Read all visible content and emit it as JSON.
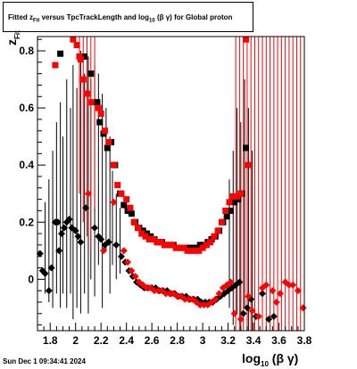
{
  "title": {
    "prefix": "Fitted ",
    "z": "z",
    "z_sub": "Fit",
    "mid": "  versus TpcTrackLength and log",
    "log_sub": "10",
    "suffix": " (β  γ) for Global proton"
  },
  "axis_titles": {
    "y_main": "z",
    "y_sub": "Fit",
    "x_main": "log",
    "x_sub": "10",
    "x_tail": " (β γ)"
  },
  "timestamp": "Sun Dec  1 09:34:41 2024",
  "chart_data": {
    "type": "scatter",
    "x_range": [
      1.7,
      3.8
    ],
    "y_range": [
      -0.18,
      0.85
    ],
    "x_ticks": [
      "1.8",
      "2",
      "2.2",
      "2.4",
      "2.6",
      "2.8",
      "3",
      "3.2",
      "3.4",
      "3.6",
      "3.8"
    ],
    "y_ticks": [
      "0",
      "0.2",
      "0.4",
      "0.6",
      "0.8"
    ],
    "series": [
      {
        "marker": "square",
        "color": "#000000",
        "points": [
          [
            1.88,
            0.79
          ],
          [
            2.07,
            0.78
          ],
          [
            2.12,
            0.72
          ],
          [
            2.17,
            0.62
          ],
          [
            2.19,
            0.55
          ],
          [
            2.22,
            0.51
          ],
          [
            2.25,
            0.46
          ],
          [
            2.28,
            0.48
          ],
          [
            2.31,
            0.4
          ],
          [
            2.35,
            0.3
          ],
          [
            2.38,
            0.26
          ],
          [
            2.41,
            0.24
          ],
          [
            2.44,
            0.23
          ],
          [
            2.47,
            0.2
          ],
          [
            2.5,
            0.18
          ],
          [
            2.53,
            0.17
          ],
          [
            2.56,
            0.16
          ],
          [
            2.59,
            0.15
          ],
          [
            2.62,
            0.14
          ],
          [
            2.65,
            0.13
          ],
          [
            2.68,
            0.13
          ],
          [
            2.71,
            0.12
          ],
          [
            2.74,
            0.12
          ],
          [
            2.77,
            0.12
          ],
          [
            2.8,
            0.11
          ],
          [
            2.83,
            0.11
          ],
          [
            2.86,
            0.11
          ],
          [
            2.89,
            0.11
          ],
          [
            2.92,
            0.11
          ],
          [
            2.95,
            0.11
          ],
          [
            2.98,
            0.12
          ],
          [
            3.01,
            0.12
          ],
          [
            3.04,
            0.13
          ],
          [
            3.07,
            0.14
          ],
          [
            3.1,
            0.15
          ],
          [
            3.13,
            0.17
          ],
          [
            3.16,
            0.2
          ],
          [
            3.19,
            0.22
          ],
          [
            3.22,
            0.24
          ],
          [
            3.25,
            0.27
          ],
          [
            3.28,
            0.28
          ],
          [
            3.31,
            0.3
          ],
          [
            3.34,
            0.46
          ]
        ]
      },
      {
        "marker": "square",
        "color": "#ff0000",
        "points": [
          [
            1.84,
            0.75
          ],
          [
            1.98,
            0.84
          ],
          [
            2.01,
            0.82
          ],
          [
            2.03,
            0.78
          ],
          [
            2.04,
            0.77
          ],
          [
            2.06,
            0.7
          ],
          [
            2.09,
            0.65
          ],
          [
            2.12,
            0.62
          ],
          [
            2.18,
            0.6
          ],
          [
            2.2,
            0.58
          ],
          [
            2.23,
            0.52
          ],
          [
            2.26,
            0.48
          ],
          [
            2.3,
            0.4
          ],
          [
            2.33,
            0.33
          ],
          [
            2.36,
            0.3
          ],
          [
            2.4,
            0.28
          ],
          [
            2.43,
            0.25
          ],
          [
            2.46,
            0.2
          ],
          [
            2.49,
            0.18
          ],
          [
            2.52,
            0.16
          ],
          [
            2.55,
            0.15
          ],
          [
            2.58,
            0.14
          ],
          [
            2.61,
            0.14
          ],
          [
            2.64,
            0.13
          ],
          [
            2.67,
            0.13
          ],
          [
            2.7,
            0.12
          ],
          [
            2.73,
            0.12
          ],
          [
            2.76,
            0.12
          ],
          [
            2.79,
            0.11
          ],
          [
            2.82,
            0.11
          ],
          [
            2.85,
            0.11
          ],
          [
            2.88,
            0.1
          ],
          [
            2.91,
            0.1
          ],
          [
            2.94,
            0.1
          ],
          [
            2.97,
            0.1
          ],
          [
            3.0,
            0.11
          ],
          [
            3.03,
            0.12
          ],
          [
            3.06,
            0.13
          ],
          [
            3.09,
            0.15
          ],
          [
            3.12,
            0.17
          ],
          [
            3.15,
            0.2
          ],
          [
            3.18,
            0.24
          ],
          [
            3.21,
            0.27
          ],
          [
            3.24,
            0.29
          ],
          [
            3.27,
            0.29
          ],
          [
            3.3,
            0.3
          ],
          [
            3.34,
            0.84
          ],
          [
            3.36,
            0.4
          ]
        ]
      },
      {
        "marker": "diamond",
        "color": "#000000",
        "points": [
          [
            1.72,
            0.09
          ],
          [
            1.74,
            0.03
          ],
          [
            1.76,
            0.02
          ],
          [
            1.79,
            -0.04
          ],
          [
            1.81,
            0.04
          ],
          [
            1.84,
            0.2
          ],
          [
            1.86,
            0.2
          ],
          [
            1.87,
            0.1
          ],
          [
            1.89,
            0.16
          ],
          [
            1.91,
            0.18
          ],
          [
            1.93,
            0.2
          ],
          [
            1.95,
            0.21
          ],
          [
            1.97,
            0.18
          ],
          [
            2.0,
            0.17
          ],
          [
            2.02,
            0.15
          ],
          [
            2.04,
            0.13
          ],
          [
            2.08,
            0.25
          ],
          [
            2.15,
            0.18
          ],
          [
            2.18,
            0.15
          ],
          [
            2.2,
            0.14
          ],
          [
            2.23,
            0.12
          ],
          [
            2.26,
            0.13
          ],
          [
            2.32,
            0.12
          ],
          [
            2.36,
            0.08
          ],
          [
            2.39,
            0.06
          ],
          [
            2.42,
            0.03
          ],
          [
            2.45,
            0.01
          ],
          [
            2.48,
            -0.01
          ],
          [
            2.51,
            -0.02
          ],
          [
            2.54,
            -0.03
          ],
          [
            2.57,
            -0.03
          ],
          [
            2.6,
            -0.03
          ],
          [
            2.63,
            -0.03
          ],
          [
            2.66,
            -0.04
          ],
          [
            2.69,
            -0.04
          ],
          [
            2.72,
            -0.04
          ],
          [
            2.75,
            -0.05
          ],
          [
            2.78,
            -0.05
          ],
          [
            2.81,
            -0.06
          ],
          [
            2.84,
            -0.06
          ],
          [
            2.87,
            -0.06
          ],
          [
            2.9,
            -0.07
          ],
          [
            2.93,
            -0.07
          ],
          [
            2.96,
            -0.07
          ],
          [
            2.99,
            -0.08
          ],
          [
            3.02,
            -0.08
          ],
          [
            3.05,
            -0.08
          ],
          [
            3.08,
            -0.08
          ],
          [
            3.11,
            -0.07
          ],
          [
            3.14,
            -0.06
          ],
          [
            3.17,
            -0.05
          ],
          [
            3.2,
            -0.04
          ],
          [
            3.23,
            -0.03
          ],
          [
            3.26,
            -0.02
          ],
          [
            3.29,
            -0.01
          ],
          [
            3.32,
            -0.12
          ],
          [
            3.35,
            -0.1
          ],
          [
            3.38,
            -0.07
          ],
          [
            3.42,
            -0.13
          ],
          [
            3.47,
            -0.05
          ],
          [
            3.52,
            -0.14
          ],
          [
            3.56,
            -0.13
          ]
        ]
      },
      {
        "marker": "diamond",
        "color": "#ff0000",
        "points": [
          [
            2.1,
            0.3
          ],
          [
            2.22,
            0.1
          ],
          [
            2.3,
            0.27
          ],
          [
            2.38,
            0.1
          ],
          [
            2.41,
            0.06
          ],
          [
            2.44,
            0.03
          ],
          [
            2.47,
            0.01
          ],
          [
            2.5,
            -0.01
          ],
          [
            2.53,
            -0.02
          ],
          [
            2.56,
            -0.03
          ],
          [
            2.59,
            -0.03
          ],
          [
            2.62,
            -0.04
          ],
          [
            2.65,
            -0.04
          ],
          [
            2.68,
            -0.04
          ],
          [
            2.71,
            -0.05
          ],
          [
            2.74,
            -0.05
          ],
          [
            2.77,
            -0.05
          ],
          [
            2.8,
            -0.06
          ],
          [
            2.83,
            -0.06
          ],
          [
            2.86,
            -0.07
          ],
          [
            2.89,
            -0.07
          ],
          [
            2.92,
            -0.07
          ],
          [
            2.95,
            -0.08
          ],
          [
            2.98,
            -0.09
          ],
          [
            3.01,
            -0.09
          ],
          [
            3.04,
            -0.09
          ],
          [
            3.07,
            -0.08
          ],
          [
            3.1,
            -0.07
          ],
          [
            3.13,
            -0.05
          ],
          [
            3.16,
            -0.03
          ],
          [
            3.19,
            -0.02
          ],
          [
            3.22,
            -0.01
          ],
          [
            3.25,
            -0.12
          ],
          [
            3.3,
            -0.14
          ],
          [
            3.36,
            -0.06
          ],
          [
            3.39,
            -0.11
          ],
          [
            3.44,
            -0.13
          ],
          [
            3.47,
            -0.03
          ],
          [
            3.5,
            -0.02
          ],
          [
            3.55,
            -0.04
          ],
          [
            3.58,
            -0.08
          ],
          [
            3.61,
            -0.05
          ],
          [
            3.65,
            -0.01
          ],
          [
            3.68,
            -0.02
          ],
          [
            3.71,
            -0.02
          ],
          [
            3.75,
            -0.04
          ],
          [
            3.79,
            -0.1
          ]
        ]
      }
    ],
    "error_bars": [
      {
        "color": "#000000",
        "x": 1.76,
        "lo": -0.05,
        "hi": 0.27
      },
      {
        "color": "#000000",
        "x": 1.79,
        "lo": -0.08,
        "hi": 0.35
      },
      {
        "color": "#000000",
        "x": 1.82,
        "lo": -0.1,
        "hi": 0.45
      },
      {
        "color": "#000000",
        "x": 1.85,
        "lo": -0.05,
        "hi": 0.55
      },
      {
        "color": "#000000",
        "x": 1.88,
        "lo": -0.1,
        "hi": 0.62
      },
      {
        "color": "#000000",
        "x": 1.9,
        "lo": -0.05,
        "hi": 0.5
      },
      {
        "color": "#000000",
        "x": 1.93,
        "lo": -0.1,
        "hi": 0.7
      },
      {
        "color": "#000000",
        "x": 1.96,
        "lo": -0.05,
        "hi": 0.6
      },
      {
        "color": "#000000",
        "x": 1.98,
        "lo": -0.14,
        "hi": 0.75
      },
      {
        "color": "#000000",
        "x": 2.01,
        "lo": -0.1,
        "hi": 0.67
      },
      {
        "color": "#000000",
        "x": 2.04,
        "lo": -0.12,
        "hi": 0.8
      },
      {
        "color": "#000000",
        "x": 2.07,
        "lo": -0.05,
        "hi": 0.72
      },
      {
        "color": "#000000",
        "x": 2.1,
        "lo": -0.12,
        "hi": 0.78
      },
      {
        "color": "#000000",
        "x": 2.12,
        "lo": 0.0,
        "hi": 0.7
      },
      {
        "color": "#000000",
        "x": 2.15,
        "lo": -0.06,
        "hi": 0.75
      },
      {
        "color": "#000000",
        "x": 2.18,
        "lo": 0.05,
        "hi": 0.72
      },
      {
        "color": "#000000",
        "x": 2.21,
        "lo": -0.1,
        "hi": 0.65
      },
      {
        "color": "#000000",
        "x": 2.24,
        "lo": 0.1,
        "hi": 0.6
      },
      {
        "color": "#000000",
        "x": 2.27,
        "lo": -0.05,
        "hi": 0.5
      },
      {
        "color": "#000000",
        "x": 2.29,
        "lo": 0.05,
        "hi": 0.38
      },
      {
        "color": "#000000",
        "x": 2.32,
        "lo": 0.0,
        "hi": 0.3
      },
      {
        "color": "#000000",
        "x": 2.35,
        "lo": 0.02,
        "hi": 0.25
      },
      {
        "color": "#000000",
        "x": 3.21,
        "lo": -0.1,
        "hi": 0.35
      },
      {
        "color": "#000000",
        "x": 3.24,
        "lo": -0.16,
        "hi": 0.45
      },
      {
        "color": "#000000",
        "x": 3.27,
        "lo": -0.12,
        "hi": 0.6
      },
      {
        "color": "#000000",
        "x": 3.3,
        "lo": -0.18,
        "hi": 0.55
      },
      {
        "color": "#000000",
        "x": 3.33,
        "lo": -0.1,
        "hi": 0.7
      },
      {
        "color": "#000000",
        "x": 3.36,
        "lo": -0.18,
        "hi": 0.6
      },
      {
        "color": "#000000",
        "x": 3.39,
        "lo": -0.18,
        "hi": 0.45
      },
      {
        "color": "#ff0000",
        "x": 2.03,
        "lo": 0.3,
        "hi": 0.85
      },
      {
        "color": "#ff0000",
        "x": 2.06,
        "lo": 0.2,
        "hi": 0.85
      },
      {
        "color": "#ff0000",
        "x": 2.09,
        "lo": 0.15,
        "hi": 0.85
      },
      {
        "color": "#ff0000",
        "x": 2.12,
        "lo": 0.1,
        "hi": 0.85
      },
      {
        "color": "#ff0000",
        "x": 2.15,
        "lo": 0.25,
        "hi": 0.85
      },
      {
        "color": "#ff0000",
        "x": 3.26,
        "lo": -0.18,
        "hi": 0.85
      },
      {
        "color": "#ff0000",
        "x": 3.29,
        "lo": -0.18,
        "hi": 0.85
      },
      {
        "color": "#ff0000",
        "x": 3.32,
        "lo": -0.18,
        "hi": 0.85
      },
      {
        "color": "#ff0000",
        "x": 3.35,
        "lo": -0.18,
        "hi": 0.85
      },
      {
        "color": "#ff0000",
        "x": 3.38,
        "lo": -0.18,
        "hi": 0.85
      },
      {
        "color": "#ff0000",
        "x": 3.41,
        "lo": -0.18,
        "hi": 0.85
      },
      {
        "color": "#ff0000",
        "x": 3.44,
        "lo": -0.18,
        "hi": 0.85
      },
      {
        "color": "#ff0000",
        "x": 3.47,
        "lo": -0.18,
        "hi": 0.85
      },
      {
        "color": "#ff0000",
        "x": 3.5,
        "lo": -0.18,
        "hi": 0.85
      },
      {
        "color": "#ff0000",
        "x": 3.53,
        "lo": -0.18,
        "hi": 0.85
      },
      {
        "color": "#ff0000",
        "x": 3.56,
        "lo": -0.18,
        "hi": 0.85
      },
      {
        "color": "#ff0000",
        "x": 3.59,
        "lo": -0.18,
        "hi": 0.85
      },
      {
        "color": "#ff0000",
        "x": 3.62,
        "lo": -0.18,
        "hi": 0.85
      },
      {
        "color": "#ff0000",
        "x": 3.65,
        "lo": -0.18,
        "hi": 0.85
      },
      {
        "color": "#ff0000",
        "x": 3.68,
        "lo": -0.18,
        "hi": 0.85
      },
      {
        "color": "#ff0000",
        "x": 3.71,
        "lo": -0.18,
        "hi": 0.85
      },
      {
        "color": "#ff0000",
        "x": 3.74,
        "lo": -0.18,
        "hi": 0.85
      },
      {
        "color": "#ff0000",
        "x": 3.77,
        "lo": -0.18,
        "hi": 0.85
      },
      {
        "color": "#ff0000",
        "x": 3.8,
        "lo": -0.18,
        "hi": 0.85
      }
    ]
  }
}
